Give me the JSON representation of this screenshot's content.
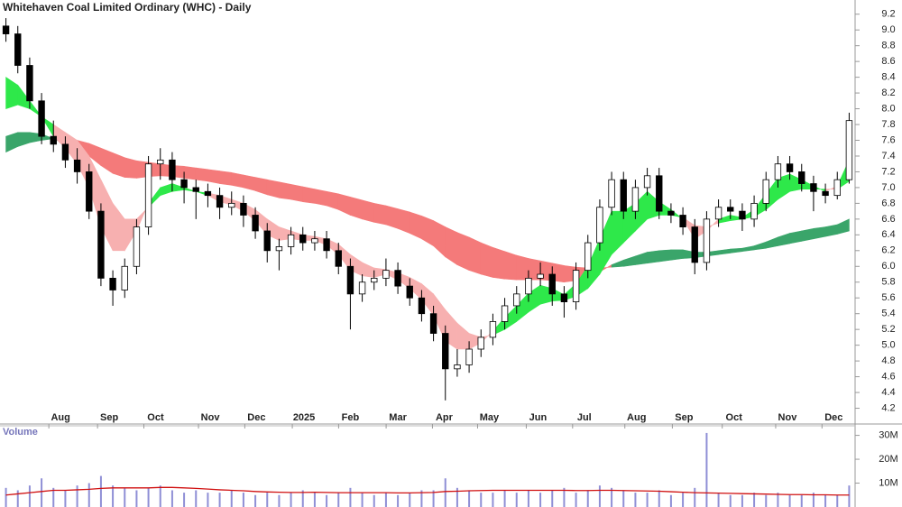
{
  "chart_data": [
    {
      "type": "candlestick",
      "title": "Whitehaven Coal Limited Ordinary (WHC) - Daily",
      "open": [
        9.05,
        8.95,
        8.55,
        8.1,
        7.65,
        7.55,
        7.35,
        7.2,
        6.7,
        5.85,
        5.7,
        6.0,
        6.5,
        7.3,
        7.35,
        7.1,
        7.0,
        6.95,
        6.9,
        6.75,
        6.8,
        6.65,
        6.45,
        6.2,
        6.25,
        6.4,
        6.3,
        6.35,
        6.2,
        6.0,
        5.65,
        5.8,
        5.85,
        5.95,
        5.75,
        5.6,
        5.4,
        5.15,
        4.7,
        4.75,
        4.95,
        5.1,
        5.3,
        5.5,
        5.65,
        5.85,
        5.9,
        5.65,
        5.55,
        5.95,
        6.3,
        6.75,
        7.1,
        6.7,
        7.0,
        7.15,
        6.7,
        6.65,
        6.5,
        6.05,
        6.6,
        6.75,
        6.7,
        6.6,
        6.8,
        7.1,
        7.3,
        7.2,
        7.05,
        6.95,
        6.9,
        7.1
      ],
      "high": [
        9.15,
        9.05,
        8.65,
        8.2,
        7.85,
        7.65,
        7.5,
        7.3,
        6.8,
        5.95,
        6.1,
        6.6,
        7.4,
        7.5,
        7.45,
        7.2,
        7.1,
        7.05,
        7.0,
        6.95,
        6.9,
        6.75,
        6.55,
        6.35,
        6.5,
        6.5,
        6.45,
        6.45,
        6.3,
        6.1,
        5.9,
        5.95,
        6.1,
        6.05,
        5.85,
        5.7,
        5.5,
        5.25,
        4.95,
        5.05,
        5.2,
        5.4,
        5.6,
        5.75,
        5.95,
        6.05,
        6.0,
        5.75,
        6.05,
        6.4,
        6.85,
        7.2,
        7.2,
        7.1,
        7.25,
        7.25,
        6.8,
        6.75,
        6.6,
        6.7,
        6.85,
        6.85,
        6.8,
        6.9,
        7.2,
        7.4,
        7.4,
        7.3,
        7.15,
        7.05,
        7.2,
        7.95
      ],
      "low": [
        8.85,
        8.45,
        8.0,
        7.55,
        7.45,
        7.25,
        7.05,
        6.6,
        5.75,
        5.5,
        5.6,
        5.9,
        6.4,
        7.1,
        6.95,
        6.8,
        6.6,
        6.75,
        6.6,
        6.65,
        6.5,
        6.35,
        6.05,
        5.95,
        6.15,
        6.2,
        6.2,
        6.1,
        5.9,
        5.2,
        5.55,
        5.7,
        5.75,
        5.65,
        5.5,
        5.3,
        5.05,
        4.3,
        4.6,
        4.65,
        4.85,
        5.0,
        5.2,
        5.4,
        5.55,
        5.75,
        5.5,
        5.35,
        5.45,
        5.85,
        6.2,
        6.65,
        6.6,
        6.6,
        6.9,
        6.6,
        6.55,
        6.4,
        5.9,
        5.95,
        6.5,
        6.6,
        6.45,
        6.5,
        6.7,
        7.0,
        7.1,
        6.95,
        6.7,
        6.8,
        6.85,
        7.05
      ],
      "close": [
        8.95,
        8.55,
        8.1,
        7.65,
        7.55,
        7.35,
        7.2,
        6.7,
        5.85,
        5.7,
        6.0,
        6.5,
        7.3,
        7.35,
        7.1,
        7.0,
        6.95,
        6.9,
        6.75,
        6.8,
        6.65,
        6.45,
        6.2,
        6.25,
        6.4,
        6.3,
        6.35,
        6.2,
        6.0,
        5.65,
        5.8,
        5.85,
        5.95,
        5.75,
        5.6,
        5.4,
        5.15,
        4.7,
        4.75,
        4.95,
        5.1,
        5.3,
        5.5,
        5.65,
        5.85,
        5.9,
        5.65,
        5.55,
        5.95,
        6.3,
        6.75,
        7.1,
        6.7,
        7.0,
        7.15,
        6.7,
        6.65,
        6.5,
        6.05,
        6.6,
        6.75,
        6.7,
        6.6,
        6.8,
        7.1,
        7.3,
        7.2,
        7.05,
        6.95,
        6.9,
        7.1,
        7.85
      ],
      "ribbons": [
        {
          "fast": [
            7.65,
            7.7,
            7.7,
            7.68,
            7.62,
            7.55,
            7.48,
            7.4,
            7.28,
            7.18,
            7.13,
            7.12,
            7.14,
            7.15,
            7.14,
            7.12,
            7.1,
            7.08,
            7.05,
            7.03,
            7.0,
            6.96,
            6.91,
            6.87,
            6.85,
            6.82,
            6.8,
            6.77,
            6.72,
            6.65,
            6.6,
            6.56,
            6.53,
            6.48,
            6.42,
            6.35,
            6.26,
            6.12,
            6.02,
            5.95,
            5.9,
            5.86,
            5.84,
            5.83,
            5.83,
            5.83,
            5.82,
            5.8,
            5.82,
            5.86,
            5.93,
            6.02,
            6.08,
            6.13,
            6.18,
            6.2,
            6.21,
            6.21,
            6.18,
            6.18,
            6.2,
            6.22,
            6.23,
            6.26,
            6.31,
            6.37,
            6.42,
            6.45,
            6.48,
            6.5,
            6.53,
            6.6
          ],
          "slow": [
            7.45,
            7.52,
            7.57,
            7.6,
            7.62,
            7.62,
            7.6,
            7.56,
            7.5,
            7.44,
            7.38,
            7.34,
            7.32,
            7.3,
            7.28,
            7.27,
            7.25,
            7.23,
            7.21,
            7.19,
            7.16,
            7.13,
            7.1,
            7.07,
            7.04,
            7.01,
            6.98,
            6.95,
            6.92,
            6.88,
            6.84,
            6.8,
            6.77,
            6.73,
            6.69,
            6.64,
            6.58,
            6.5,
            6.43,
            6.37,
            6.3,
            6.24,
            6.19,
            6.14,
            6.1,
            6.07,
            6.04,
            6.01,
            5.99,
            5.98,
            5.98,
            5.99,
            6.0,
            6.02,
            6.04,
            6.06,
            6.08,
            6.1,
            6.11,
            6.13,
            6.15,
            6.17,
            6.19,
            6.21,
            6.23,
            6.26,
            6.29,
            6.32,
            6.35,
            6.38,
            6.41,
            6.45
          ],
          "up_color": "#3aa56a",
          "down_color": "#f47a7a"
        },
        {
          "fast": [
            8.4,
            8.3,
            8.1,
            7.9,
            7.65,
            7.5,
            7.3,
            7.0,
            6.5,
            6.2,
            6.2,
            6.45,
            6.8,
            7.0,
            7.05,
            7.0,
            6.95,
            6.9,
            6.82,
            6.78,
            6.7,
            6.58,
            6.4,
            6.33,
            6.35,
            6.33,
            6.33,
            6.27,
            6.15,
            5.95,
            5.88,
            5.86,
            5.9,
            5.83,
            5.72,
            5.58,
            5.38,
            5.05,
            4.95,
            4.95,
            5.03,
            5.18,
            5.35,
            5.5,
            5.66,
            5.76,
            5.72,
            5.64,
            5.78,
            6.0,
            6.35,
            6.7,
            6.7,
            6.8,
            6.95,
            6.82,
            6.72,
            6.6,
            6.35,
            6.45,
            6.6,
            6.65,
            6.62,
            6.72,
            6.92,
            7.12,
            7.17,
            7.1,
            7.02,
            6.95,
            7.02,
            7.35
          ],
          "slow": [
            8.0,
            8.05,
            8.0,
            7.9,
            7.8,
            7.7,
            7.6,
            7.4,
            7.1,
            6.8,
            6.6,
            6.6,
            6.75,
            6.9,
            6.95,
            6.97,
            6.95,
            6.93,
            6.9,
            6.85,
            6.8,
            6.72,
            6.6,
            6.5,
            6.45,
            6.4,
            6.38,
            6.35,
            6.28,
            6.15,
            6.05,
            5.98,
            5.96,
            5.92,
            5.86,
            5.78,
            5.65,
            5.45,
            5.28,
            5.15,
            5.1,
            5.13,
            5.2,
            5.3,
            5.42,
            5.52,
            5.56,
            5.57,
            5.62,
            5.72,
            5.9,
            6.15,
            6.3,
            6.45,
            6.6,
            6.65,
            6.65,
            6.62,
            6.52,
            6.5,
            6.55,
            6.58,
            6.6,
            6.63,
            6.72,
            6.85,
            6.95,
            6.98,
            6.98,
            6.98,
            6.98,
            7.08
          ],
          "up_color": "#2ee84a",
          "down_color": "#f7b0b0"
        }
      ],
      "up_color": "#ffffff",
      "down_color": "#000000",
      "xlim": [
        -0.5,
        71.5
      ],
      "xticks": [
        {
          "value": 4.6,
          "label": "Aug"
        },
        {
          "value": 8.7,
          "label": "Sep"
        },
        {
          "value": 12.6,
          "label": "Oct"
        },
        {
          "value": 17.2,
          "label": "Nov"
        },
        {
          "value": 21.1,
          "label": "Dec"
        },
        {
          "value": 25.1,
          "label": "2025"
        },
        {
          "value": 29.0,
          "label": "Feb"
        },
        {
          "value": 33.0,
          "label": "Mar"
        },
        {
          "value": 36.9,
          "label": "Apr"
        },
        {
          "value": 40.7,
          "label": "May"
        },
        {
          "value": 44.8,
          "label": "Jun"
        },
        {
          "value": 48.7,
          "label": "Jul"
        },
        {
          "value": 53.1,
          "label": "Aug"
        },
        {
          "value": 57.1,
          "label": "Sep"
        },
        {
          "value": 61.3,
          "label": "Oct"
        },
        {
          "value": 65.8,
          "label": "Nov"
        },
        {
          "value": 69.7,
          "label": "Dec"
        }
      ],
      "ylim": [
        4.0,
        9.38
      ],
      "yticks": [
        4.2,
        4.4,
        4.6,
        4.8,
        {
          "value": 5,
          "label": "5.0"
        },
        5.2,
        5.4,
        5.6,
        5.8,
        {
          "value": 6,
          "label": "6.0"
        },
        6.2,
        6.4,
        6.6,
        6.8,
        {
          "value": 7,
          "label": "7.0"
        },
        7.2,
        7.4,
        7.6,
        7.8,
        {
          "value": 8,
          "label": "8.0"
        },
        8.2,
        8.4,
        8.6,
        8.8,
        {
          "value": 9,
          "label": "9.0"
        },
        9.2
      ]
    },
    {
      "type": "bar",
      "title": "Volume",
      "color": "#8f8fd6",
      "ma_color": "#d01010",
      "values": [
        8000000,
        7000000,
        9000000,
        12000000,
        8000000,
        7000000,
        9000000,
        10000000,
        13000000,
        9000000,
        8000000,
        7000000,
        8000000,
        9000000,
        7000000,
        6000000,
        7000000,
        6000000,
        6000000,
        7000000,
        6000000,
        5000000,
        6000000,
        5000000,
        6000000,
        7000000,
        6000000,
        5000000,
        6000000,
        8000000,
        6000000,
        5000000,
        6000000,
        5000000,
        6000000,
        7000000,
        7000000,
        12000000,
        8000000,
        7000000,
        6000000,
        6000000,
        7000000,
        6000000,
        7000000,
        6000000,
        7000000,
        8000000,
        6000000,
        7000000,
        9000000,
        8000000,
        7000000,
        6000000,
        6000000,
        7000000,
        5000000,
        6000000,
        8000000,
        31000000,
        6000000,
        5000000,
        5000000,
        6000000,
        5000000,
        6000000,
        5000000,
        5000000,
        6000000,
        5000000,
        5000000,
        9000000
      ],
      "ma": [
        5000000,
        5500000,
        6000000,
        6500000,
        7000000,
        7000000,
        7200000,
        7400000,
        7800000,
        8000000,
        8000000,
        8000000,
        8000000,
        8200000,
        8200000,
        8000000,
        7800000,
        7500000,
        7200000,
        7000000,
        6800000,
        6500000,
        6300000,
        6200000,
        6100000,
        6100000,
        6200000,
        6100000,
        6000000,
        6000000,
        6000000,
        6000000,
        6000000,
        5900000,
        5900000,
        6000000,
        6100000,
        6500000,
        6600000,
        6800000,
        6900000,
        7000000,
        7000000,
        7000000,
        7000000,
        7000000,
        7000000,
        7000000,
        6900000,
        6900000,
        7000000,
        7000000,
        6900000,
        6800000,
        6700000,
        6600000,
        6400000,
        6200000,
        6000000,
        5900000,
        5800000,
        5700000,
        5600000,
        5500000,
        5400000,
        5300000,
        5200000,
        5200000,
        5100000,
        5100000,
        5000000,
        5000000
      ],
      "ylim": [
        0,
        34000000
      ],
      "yticks": [
        {
          "value": 10000000,
          "label": "10M"
        },
        {
          "value": 20000000,
          "label": "20M"
        },
        {
          "value": 30000000,
          "label": "30M"
        }
      ]
    }
  ]
}
